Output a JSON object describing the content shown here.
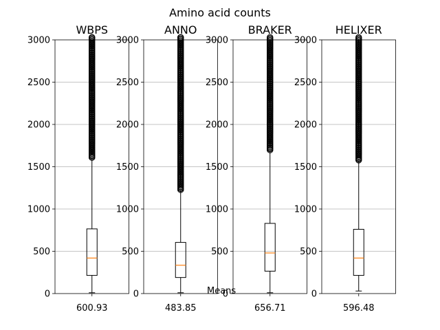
{
  "chart_data": {
    "type": "box",
    "title": "Amino acid counts",
    "note": "Means",
    "ylim": [
      0,
      3000
    ],
    "yticks": [
      0,
      500,
      1000,
      1500,
      2000,
      2500,
      3000
    ],
    "grid": "y",
    "panels": [
      {
        "name": "WBPS",
        "mean_label": "600.93",
        "min": 10,
        "q1": 215,
        "median": 420,
        "q3": 765,
        "whisker_high": 1600,
        "outliers_from": 1600,
        "outliers_to": 3000
      },
      {
        "name": "ANNO",
        "mean_label": "483.85",
        "min": 10,
        "q1": 190,
        "median": 335,
        "q3": 605,
        "whisker_high": 1220,
        "outliers_from": 1220,
        "outliers_to": 3000
      },
      {
        "name": "BRAKER",
        "mean_label": "656.71",
        "min": 10,
        "q1": 265,
        "median": 480,
        "q3": 830,
        "whisker_high": 1690,
        "outliers_from": 1690,
        "outliers_to": 3000
      },
      {
        "name": "HELIXER",
        "mean_label": "596.48",
        "min": 30,
        "q1": 215,
        "median": 420,
        "q3": 760,
        "whisker_high": 1570,
        "outliers_from": 1570,
        "outliers_to": 3000
      }
    ]
  }
}
